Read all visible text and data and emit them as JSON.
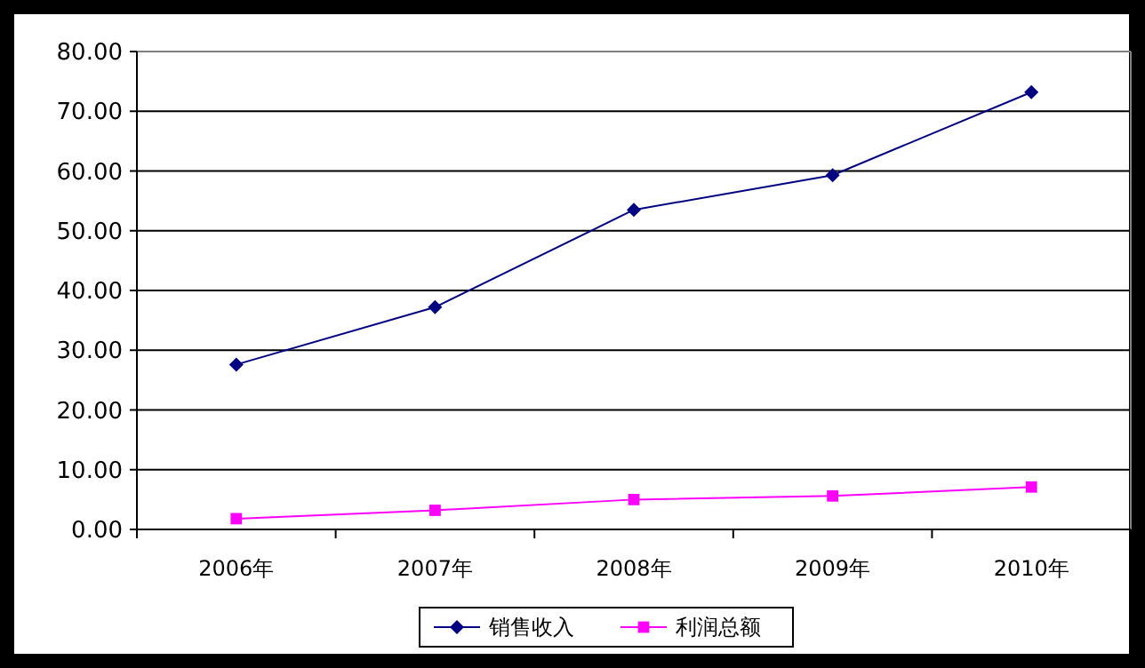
{
  "chart_data": {
    "type": "line",
    "categories": [
      "2006年",
      "2007年",
      "2008年",
      "2009年",
      "2010年"
    ],
    "series": [
      {
        "name": "销售收入",
        "color": "#000080",
        "marker": "diamond",
        "values": [
          27.6,
          37.2,
          53.5,
          59.3,
          73.2
        ]
      },
      {
        "name": "利润总额",
        "color": "#ff00ff",
        "marker": "square",
        "values": [
          1.8,
          3.2,
          5.0,
          5.6,
          7.1
        ]
      }
    ],
    "ylim": [
      0,
      80
    ],
    "yticks": [
      {
        "value": 0,
        "label": "0.00"
      },
      {
        "value": 10,
        "label": "10.00"
      },
      {
        "value": 20,
        "label": "20.00"
      },
      {
        "value": 30,
        "label": "30.00"
      },
      {
        "value": 40,
        "label": "40.00"
      },
      {
        "value": 50,
        "label": "50.00"
      },
      {
        "value": 60,
        "label": "60.00"
      },
      {
        "value": 70,
        "label": "70.00"
      },
      {
        "value": 80,
        "label": "80.00"
      }
    ],
    "grid": "y",
    "legend": "bottom"
  }
}
